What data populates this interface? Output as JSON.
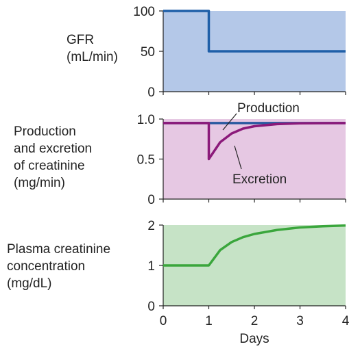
{
  "chart_data": [
    {
      "type": "line",
      "ylabel_lines": [
        "GFR",
        "(mL/min)"
      ],
      "xlim": [
        0,
        4
      ],
      "ylim": [
        0,
        100
      ],
      "yticks": [
        "0",
        "50",
        "100"
      ],
      "series": [
        {
          "x": [
            0,
            1,
            1,
            4
          ],
          "values": [
            100,
            100,
            50,
            50
          ],
          "color": "#1f5fa8"
        }
      ],
      "background": "#b4c8e8"
    },
    {
      "type": "line",
      "ylabel_lines": [
        "Production",
        "and excretion",
        "of creatinine",
        "(mg/min)"
      ],
      "xlim": [
        0,
        4
      ],
      "ylim": [
        0,
        1.0
      ],
      "yticks": [
        "0",
        "0.5",
        "1.0"
      ],
      "series": [
        {
          "name": "Production",
          "x": [
            0,
            4
          ],
          "values": [
            0.95,
            0.95
          ],
          "color": "#2a5aa0"
        },
        {
          "name": "Excretion",
          "x": [
            0,
            1,
            1,
            1.25,
            1.5,
            1.75,
            2,
            2.5,
            3,
            3.5,
            4
          ],
          "values": [
            0.95,
            0.95,
            0.5,
            0.71,
            0.82,
            0.88,
            0.91,
            0.937,
            0.946,
            0.949,
            0.95
          ],
          "color": "#8b1a7a"
        }
      ],
      "annotations": [
        "Production",
        "Excretion"
      ],
      "background": "#e6c8e3"
    },
    {
      "type": "line",
      "ylabel_lines": [
        "Plasma creatinine",
        "concentration",
        "(mg/dL)"
      ],
      "xlabel": "Days",
      "xlim": [
        0,
        4
      ],
      "ylim": [
        0,
        2
      ],
      "yticks": [
        "0",
        "1",
        "2"
      ],
      "xticks": [
        "0",
        "1",
        "2",
        "3",
        "4"
      ],
      "series": [
        {
          "x": [
            0,
            1,
            1.25,
            1.5,
            1.75,
            2,
            2.5,
            3,
            3.5,
            4
          ],
          "values": [
            1,
            1,
            1.38,
            1.58,
            1.7,
            1.78,
            1.88,
            1.94,
            1.97,
            1.99
          ],
          "color": "#3aa63c"
        }
      ],
      "background": "#c6e3c6"
    }
  ]
}
